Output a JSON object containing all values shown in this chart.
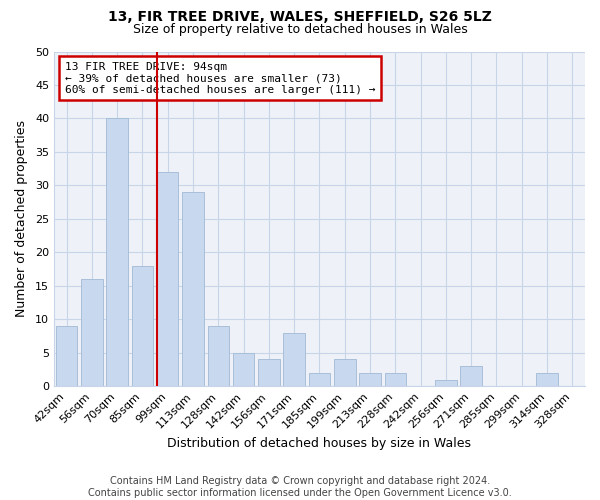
{
  "title": "13, FIR TREE DRIVE, WALES, SHEFFIELD, S26 5LZ",
  "subtitle": "Size of property relative to detached houses in Wales",
  "xlabel": "Distribution of detached houses by size in Wales",
  "ylabel": "Number of detached properties",
  "bar_color": "#c8d8ee",
  "bar_edge_color": "#a8bfd8",
  "highlight_color": "#cc0000",
  "categories": [
    "42sqm",
    "56sqm",
    "70sqm",
    "85sqm",
    "99sqm",
    "113sqm",
    "128sqm",
    "142sqm",
    "156sqm",
    "171sqm",
    "185sqm",
    "199sqm",
    "213sqm",
    "228sqm",
    "242sqm",
    "256sqm",
    "271sqm",
    "285sqm",
    "299sqm",
    "314sqm",
    "328sqm"
  ],
  "values": [
    9,
    16,
    40,
    18,
    32,
    29,
    9,
    5,
    4,
    8,
    2,
    4,
    2,
    2,
    0,
    1,
    3,
    0,
    0,
    2,
    0
  ],
  "ylim": [
    0,
    50
  ],
  "yticks": [
    0,
    5,
    10,
    15,
    20,
    25,
    30,
    35,
    40,
    45,
    50
  ],
  "red_line_index": 4,
  "annotation_title": "13 FIR TREE DRIVE: 94sqm",
  "annotation_line1": "← 39% of detached houses are smaller (73)",
  "annotation_line2": "60% of semi-detached houses are larger (111) →",
  "footer_line1": "Contains HM Land Registry data © Crown copyright and database right 2024.",
  "footer_line2": "Contains public sector information licensed under the Open Government Licence v3.0.",
  "grid_color": "#c8d4e8",
  "background_color": "#eef2f8",
  "title_fontsize": 10,
  "subtitle_fontsize": 9,
  "xlabel_fontsize": 9,
  "ylabel_fontsize": 9,
  "tick_fontsize": 8,
  "annotation_fontsize": 8,
  "footer_fontsize": 7
}
